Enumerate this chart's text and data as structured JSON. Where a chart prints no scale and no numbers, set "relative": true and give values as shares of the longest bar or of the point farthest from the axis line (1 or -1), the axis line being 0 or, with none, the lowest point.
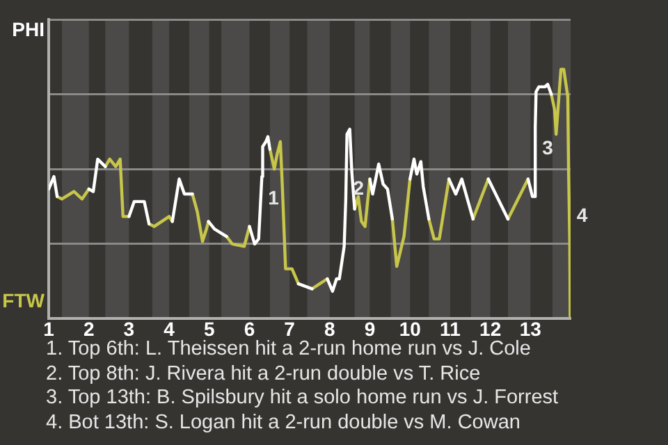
{
  "chart_data": {
    "type": "line",
    "relative": true,
    "series": [
      {
        "name": "PHI",
        "color": "#ffffff",
        "x": [
          1.0,
          1.13,
          1.21,
          null,
          2.0,
          2.11,
          2.22,
          2.41,
          null,
          3.0,
          3.13,
          3.38,
          3.5,
          null,
          4.08,
          4.25,
          4.38,
          4.5,
          4.58,
          null,
          4.98,
          5.13,
          5.43,
          null,
          6.0,
          6.13,
          6.23,
          6.31,
          6.33,
          6.41,
          6.46,
          6.51,
          null,
          7.22,
          7.56,
          null,
          7.94,
          8.07,
          8.17,
          8.24,
          8.36,
          8.4,
          8.43,
          8.5,
          8.55,
          8.62,
          null,
          9.0,
          9.07,
          9.22,
          9.33,
          9.44,
          9.56,
          null,
          10.0,
          10.1,
          10.17,
          10.27,
          10.33,
          10.47,
          null,
          10.97,
          11.14,
          11.29,
          11.57,
          null,
          11.95,
          12.44,
          null,
          12.94,
          13.05,
          13.1,
          13.12,
          13.14,
          13.21,
          13.36,
          13.43,
          13.52
        ],
        "values": [
          0.52,
          0.57,
          0.49,
          null,
          0.52,
          0.51,
          0.64,
          0.61,
          null,
          0.41,
          0.47,
          0.47,
          0.38,
          null,
          0.39,
          0.56,
          0.5,
          0.5,
          0.5,
          null,
          0.39,
          0.36,
          0.33,
          null,
          0.37,
          0.3,
          0.32,
          0.57,
          0.69,
          0.71,
          0.73,
          0.68,
          null,
          0.14,
          0.12,
          null,
          0.16,
          0.11,
          0.16,
          0.16,
          0.29,
          0.48,
          0.74,
          0.76,
          0.59,
          0.44,
          null,
          0.56,
          0.5,
          0.62,
          0.54,
          0.52,
          0.4,
          null,
          0.56,
          0.64,
          0.58,
          0.63,
          0.53,
          0.4,
          null,
          0.56,
          0.5,
          0.56,
          0.4,
          null,
          0.56,
          0.4,
          null,
          0.56,
          0.49,
          0.49,
          0.77,
          0.91,
          0.93,
          0.93,
          0.94,
          0.9
        ]
      },
      {
        "name": "FTW",
        "color": "#c8c64a",
        "x": [
          1.21,
          1.33,
          1.63,
          1.83,
          2.0,
          null,
          2.41,
          2.52,
          2.67,
          2.78,
          2.85,
          3.0,
          null,
          3.5,
          3.63,
          4.0,
          4.08,
          null,
          4.58,
          4.7,
          4.83,
          4.93,
          4.98,
          null,
          5.43,
          5.57,
          5.87,
          6.0,
          null,
          6.51,
          6.62,
          6.69,
          6.77,
          6.82,
          6.9,
          7.06,
          7.22,
          null,
          7.56,
          7.94,
          null,
          8.62,
          8.71,
          8.79,
          8.88,
          9.0,
          null,
          9.56,
          9.67,
          9.85,
          10.0,
          null,
          10.47,
          10.6,
          10.73,
          10.97,
          null,
          11.57,
          11.95,
          null,
          12.44,
          12.94,
          null,
          13.52,
          13.6,
          13.64,
          13.76,
          13.83,
          13.93,
          13.95,
          13.98,
          13.99
        ],
        "values": [
          0.49,
          0.48,
          0.51,
          0.48,
          0.52,
          null,
          0.61,
          0.64,
          0.61,
          0.64,
          0.41,
          0.41,
          null,
          0.38,
          0.37,
          0.41,
          0.39,
          null,
          0.5,
          0.43,
          0.31,
          0.36,
          0.39,
          null,
          0.33,
          0.3,
          0.29,
          0.37,
          null,
          0.68,
          0.6,
          0.66,
          0.71,
          0.53,
          0.2,
          0.2,
          0.14,
          null,
          0.12,
          0.16,
          null,
          0.44,
          0.49,
          0.39,
          0.37,
          0.56,
          null,
          0.4,
          0.21,
          0.33,
          0.56,
          null,
          0.4,
          0.32,
          0.32,
          0.56,
          null,
          0.4,
          0.56,
          null,
          0.4,
          0.56,
          null,
          0.9,
          0.84,
          0.74,
          1,
          1,
          0.89,
          0.6,
          0.3,
          0.01
        ]
      }
    ],
    "xlim": [
      1,
      14
    ],
    "xticks": [
      1,
      2,
      3,
      4,
      5,
      6,
      7,
      8,
      9,
      10,
      11,
      12,
      13
    ],
    "grid": "y",
    "legend": "left",
    "bands": [
      {
        "axis": "x",
        "from": 1.33,
        "to": 2,
        "color": "#4b4a48"
      },
      {
        "axis": "x",
        "from": 2.41,
        "to": 3,
        "color": "#4b4a48"
      },
      {
        "axis": "x",
        "from": 3.58,
        "to": 4,
        "color": "#4b4a48"
      },
      {
        "axis": "x",
        "from": 4.5,
        "to": 5,
        "color": "#4b4a48"
      },
      {
        "axis": "x",
        "from": 5.3,
        "to": 6,
        "color": "#4b4a48"
      },
      {
        "axis": "x",
        "from": 6.51,
        "to": 7,
        "color": "#4b4a48"
      },
      {
        "axis": "x",
        "from": 7.44,
        "to": 8,
        "color": "#4b4a48"
      },
      {
        "axis": "x",
        "from": 8.62,
        "to": 9,
        "color": "#4b4a48"
      },
      {
        "axis": "x",
        "from": 9.52,
        "to": 10,
        "color": "#4b4a48"
      },
      {
        "axis": "x",
        "from": 10.47,
        "to": 11,
        "color": "#4b4a48"
      },
      {
        "axis": "x",
        "from": 11.52,
        "to": 12,
        "color": "#4b4a48"
      },
      {
        "axis": "x",
        "from": 12.44,
        "to": 13,
        "color": "#4b4a48"
      },
      {
        "axis": "x",
        "from": 13.55,
        "to": 14,
        "color": "#4b4a48"
      }
    ],
    "annotations": [
      {
        "text": "1",
        "x": 6.29,
        "y": 0.48
      },
      {
        "text": "2",
        "x": 8.41,
        "y": 0.52
      },
      {
        "text": "3",
        "x": 13.12,
        "y": 0.68
      },
      {
        "text": "4",
        "x": 13.98,
        "y": 0.41
      },
      "1. Top 6th: L. Theissen hit a 2-run home run vs J. Cole",
      "2. Top 8th: J. Rivera hit a 2-run double vs T. Rice",
      "3. Top 13th: B. Spilsbury hit a solo home run vs J. Forrest",
      "4. Bot 13th: S. Logan hit a 2-run double vs M. Cowan"
    ],
    "line_style": "solid"
  }
}
